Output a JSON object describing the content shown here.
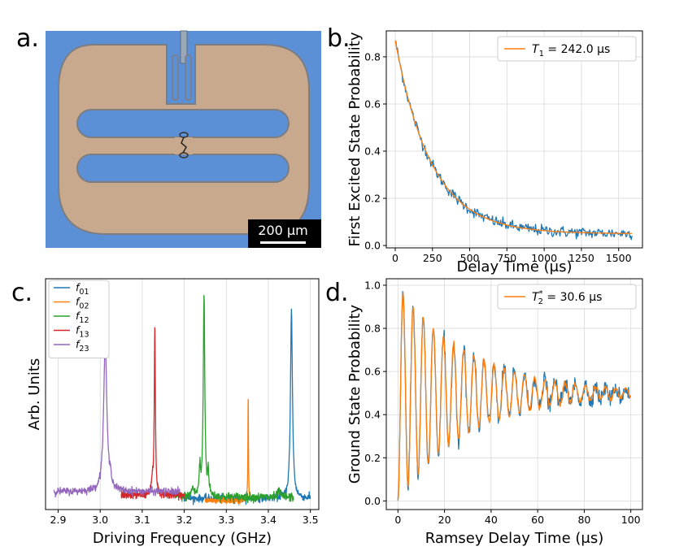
{
  "panels": {
    "a": {
      "letter": "a.",
      "scale_bar_label": "200 µm",
      "colors": {
        "background": "#5b8fd6",
        "metal": "#c8a98e",
        "scale_box": "#000000"
      }
    },
    "b": {
      "letter": "b."
    },
    "c": {
      "letter": "c."
    },
    "d": {
      "letter": "d."
    }
  },
  "chart_data": [
    {
      "id": "b",
      "type": "line",
      "title": "",
      "xlabel": "Delay Time (μs)",
      "ylabel": "First Excited State Probability",
      "xlim": [
        -60,
        1660
      ],
      "ylim": [
        -0.01,
        0.91
      ],
      "xticks": [
        0,
        250,
        500,
        750,
        1000,
        1250,
        1500
      ],
      "yticks": [
        0.0,
        0.2,
        0.4,
        0.6,
        0.8
      ],
      "ytick_labels": [
        "0.0",
        "0.2",
        "0.4",
        "0.6",
        "0.8"
      ],
      "grid": true,
      "legend_position": "top-right",
      "legend": [
        {
          "name_main": "T",
          "name_sub": "1",
          "value_text": " = 242.0 μs",
          "color": "#ff7f0e"
        }
      ],
      "series": [
        {
          "name": "data",
          "color": "#1f77b4",
          "model": "exp_decay",
          "x_range": [
            0,
            1590
          ],
          "amplitude": 0.82,
          "tau": 242.0,
          "offset": 0.05,
          "noise": 0.012,
          "n_points": 320
        },
        {
          "name": "fit",
          "color": "#ff7f0e",
          "model": "exp_decay",
          "x_range": [
            0,
            1590
          ],
          "amplitude": 0.82,
          "tau": 242.0,
          "offset": 0.05,
          "noise": 0,
          "n_points": 200
        }
      ]
    },
    {
      "id": "c",
      "type": "line",
      "xlabel": "Driving Frequency (GHz)",
      "ylabel": "Arb. Units",
      "xlim": [
        2.87,
        3.52
      ],
      "ylim": [
        -0.03,
        1.0
      ],
      "xticks": [
        2.9,
        3.0,
        3.1,
        3.2,
        3.3,
        3.4,
        3.5
      ],
      "xtick_labels": [
        "2.9",
        "3.0",
        "3.1",
        "3.2",
        "3.3",
        "3.4",
        "3.5"
      ],
      "grid": true,
      "legend_position": "top-left",
      "legend": [
        {
          "name_main": "f",
          "name_sub": "01",
          "color": "#1f77b4"
        },
        {
          "name_main": "f",
          "name_sub": "02",
          "color": "#ff7f0e"
        },
        {
          "name_main": "f",
          "name_sub": "12",
          "color": "#2ca02c"
        },
        {
          "name_main": "f",
          "name_sub": "13",
          "color": "#d62728"
        },
        {
          "name_main": "f",
          "name_sub": "23",
          "color": "#9467bd"
        }
      ],
      "series": [
        {
          "name": "f01",
          "color": "#1f77b4",
          "x_range": [
            3.2,
            3.5
          ],
          "baseline": 0.02,
          "noise": 0.008,
          "peaks": [
            {
              "center": 3.455,
              "height": 0.84,
              "width": 0.0028
            }
          ]
        },
        {
          "name": "f02",
          "color": "#ff7f0e",
          "x_range": [
            3.25,
            3.36
          ],
          "baseline": 0.01,
          "noise": 0.005,
          "peaks": [
            {
              "center": 3.352,
              "height": 0.46,
              "width": 0.0008
            }
          ]
        },
        {
          "name": "f12",
          "color": "#2ca02c",
          "x_range": [
            3.18,
            3.46
          ],
          "baseline": 0.025,
          "noise": 0.01,
          "peaks": [
            {
              "center": 3.247,
              "height": 0.9,
              "width": 0.0022
            },
            {
              "center": 3.237,
              "height": 0.12,
              "width": 0.002
            },
            {
              "center": 3.257,
              "height": 0.1,
              "width": 0.002
            },
            {
              "center": 3.22,
              "height": 0.04,
              "width": 0.003
            },
            {
              "center": 3.425,
              "height": 0.03,
              "width": 0.003
            }
          ]
        },
        {
          "name": "f13",
          "color": "#d62728",
          "x_range": [
            3.05,
            3.2
          ],
          "baseline": 0.035,
          "noise": 0.008,
          "peaks": [
            {
              "center": 3.13,
              "height": 0.74,
              "width": 0.0016
            },
            {
              "center": 3.124,
              "height": 0.06,
              "width": 0.002
            }
          ]
        },
        {
          "name": "f23",
          "color": "#9467bd",
          "x_range": [
            2.89,
            3.19
          ],
          "baseline": 0.05,
          "noise": 0.008,
          "peaks": [
            {
              "center": 3.012,
              "height": 0.67,
              "width": 0.0045
            },
            {
              "center": 3.025,
              "height": 0.04,
              "width": 0.003
            }
          ]
        }
      ]
    },
    {
      "id": "d",
      "type": "line",
      "xlabel": "Ramsey Delay Time (μs)",
      "ylabel": "Ground State Probability",
      "xlim": [
        -5,
        105
      ],
      "ylim": [
        -0.04,
        1.03
      ],
      "xticks": [
        0,
        20,
        40,
        60,
        80,
        100
      ],
      "yticks": [
        0.0,
        0.2,
        0.4,
        0.6,
        0.8,
        1.0
      ],
      "ytick_labels": [
        "0.0",
        "0.2",
        "0.4",
        "0.6",
        "0.8",
        "1.0"
      ],
      "grid": true,
      "legend_position": "top-right",
      "legend": [
        {
          "name_main": "T",
          "name_sub": "2",
          "name_sup": "*",
          "value_text": " = 30.6 μs",
          "color": "#ff7f0e"
        }
      ],
      "series": [
        {
          "name": "data",
          "color": "#1f77b4",
          "model": "ramsey",
          "x_range": [
            0,
            100
          ],
          "T2": 30.6,
          "period": 4.35,
          "phase_at_zero": 3.14159,
          "mean": 0.5,
          "amplitude": 0.5,
          "noise": 0.018,
          "n_points": 500
        },
        {
          "name": "fit",
          "color": "#ff7f0e",
          "model": "ramsey",
          "x_range": [
            0,
            100
          ],
          "T2": 30.6,
          "period": 4.35,
          "phase_at_zero": 3.14159,
          "mean": 0.5,
          "amplitude": 0.5,
          "noise": 0.006,
          "n_points": 500
        }
      ]
    }
  ]
}
